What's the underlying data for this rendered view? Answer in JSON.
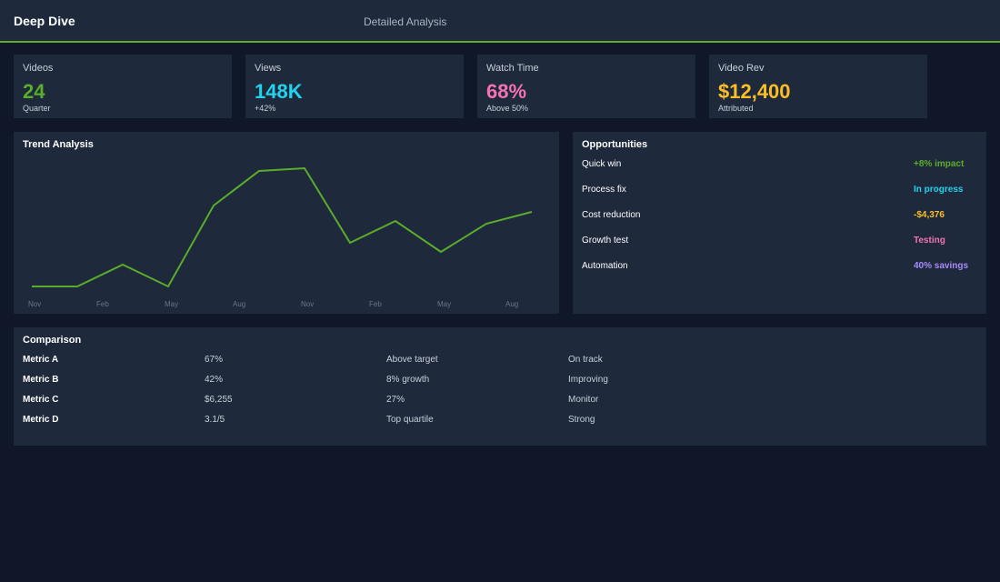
{
  "header": {
    "title": "Deep Dive",
    "subtitle": "Detailed Analysis"
  },
  "kpis": [
    {
      "label": "Videos",
      "value": "24",
      "note": "Quarter",
      "color": "#5aad2a"
    },
    {
      "label": "Views",
      "value": "148K",
      "note": "+42%",
      "color": "#22d3ee"
    },
    {
      "label": "Watch Time",
      "value": "68%",
      "note": "Above 50%",
      "color": "#f472b6"
    },
    {
      "label": "Video Rev",
      "value": "$12,400",
      "note": "Attributed",
      "color": "#fbbf24"
    }
  ],
  "chart_data": {
    "type": "line",
    "title": "Trend Analysis",
    "color": "#5aad2a",
    "values": [
      15,
      15,
      39,
      15,
      104,
      142,
      145,
      63,
      87,
      53,
      84,
      97
    ],
    "x_labels": [
      "Nov",
      "Feb",
      "May",
      "Aug",
      "Nov",
      "Feb",
      "May",
      "Aug"
    ]
  },
  "opportunities": {
    "title": "Opportunities",
    "items": [
      {
        "label": "Quick win",
        "status": "+8% impact",
        "color": "#5aad2a"
      },
      {
        "label": "Process fix",
        "status": "In progress",
        "color": "#22d3ee"
      },
      {
        "label": "Cost reduction",
        "status": "-$4,376",
        "color": "#fbbf24"
      },
      {
        "label": "Growth test",
        "status": "Testing",
        "color": "#f472b6"
      },
      {
        "label": "Automation",
        "status": "40% savings",
        "color": "#a78bfa"
      }
    ]
  },
  "comparison": {
    "title": "Comparison",
    "rows": [
      [
        "Metric A",
        "67%",
        "Above target",
        "On track"
      ],
      [
        "Metric B",
        "42%",
        "8% growth",
        "Improving"
      ],
      [
        "Metric C",
        "$6,255",
        "27%",
        "Monitor"
      ],
      [
        "Metric D",
        "3.1/5",
        "Top quartile",
        "Strong"
      ]
    ]
  }
}
